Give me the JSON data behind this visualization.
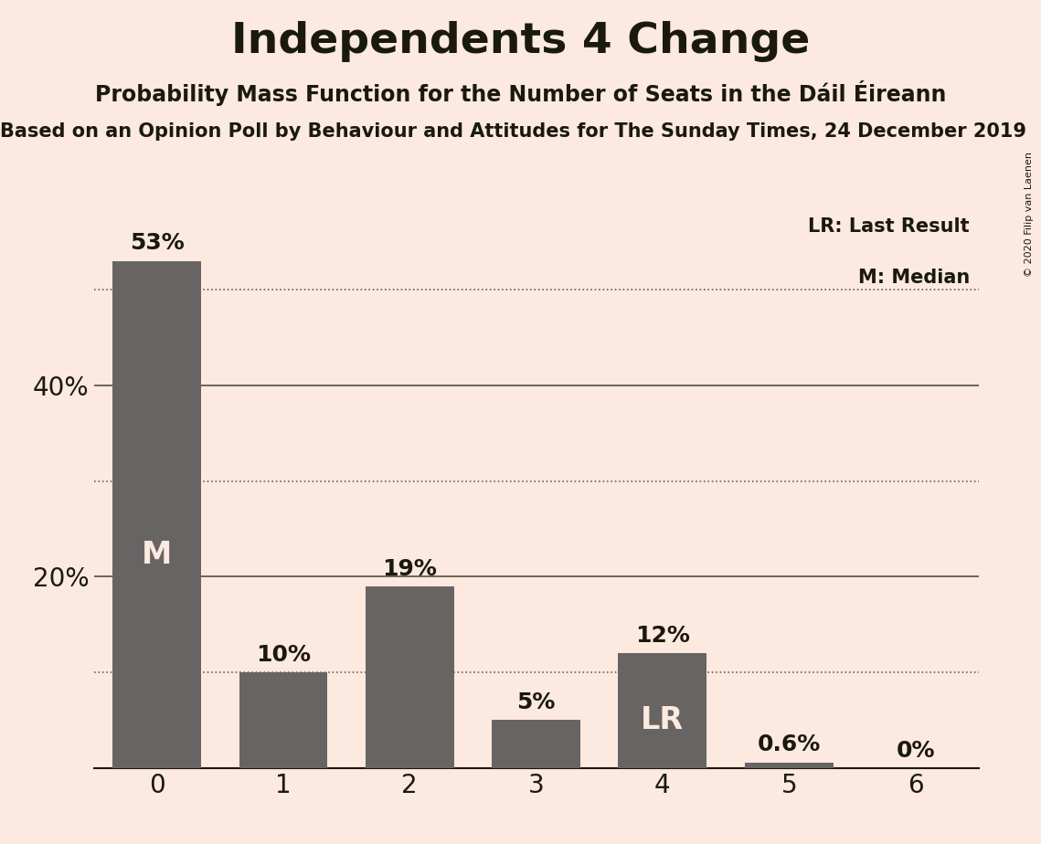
{
  "title": "Independents 4 Change",
  "subtitle": "Probability Mass Function for the Number of Seats in the Dáil Éireann",
  "sub_subtitle": "Based on an Opinion Poll by Behaviour and Attitudes for The Sunday Times, 24 December 2019",
  "copyright": "© 2020 Filip van Laenen",
  "categories": [
    0,
    1,
    2,
    3,
    4,
    5,
    6
  ],
  "values": [
    53,
    10,
    19,
    5,
    12,
    0.6,
    0
  ],
  "bar_color": "#696464",
  "background_color": "#fce9df",
  "text_color": "#1a1a0a",
  "bar_label_color_outside": "#1a1a0a",
  "bar_label_color_inside": "#fce9df",
  "ylabel_ticks": [
    20,
    40
  ],
  "dotted_lines": [
    10,
    30,
    50
  ],
  "solid_lines": [
    20,
    40
  ],
  "ylim": [
    0,
    60
  ],
  "median_bar": 0,
  "lr_bar": 4,
  "legend_lr": "LR: Last Result",
  "legend_m": "M: Median",
  "title_fontsize": 34,
  "subtitle_fontsize": 17,
  "sub_subtitle_fontsize": 15,
  "axis_label_fontsize": 20,
  "bar_label_fontsize": 18,
  "inside_label_fontsize": 24,
  "legend_fontsize": 15
}
